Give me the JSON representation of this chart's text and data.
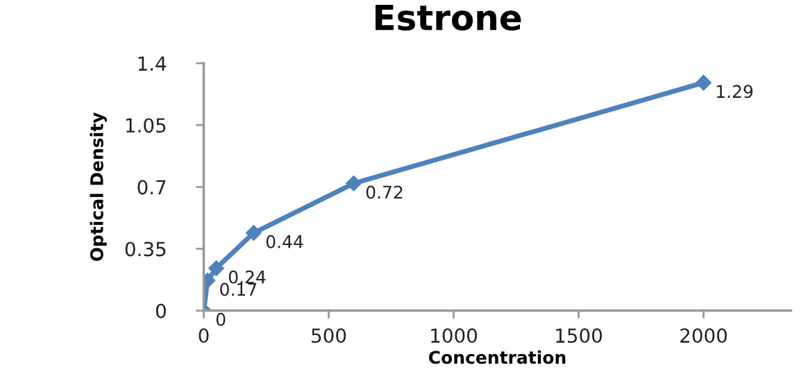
{
  "chart_data": {
    "type": "scatter",
    "title": "Estrone",
    "xlabel": "Concentration",
    "ylabel": "Optical Density",
    "x": [
      0,
      15,
      50,
      200,
      600,
      2000
    ],
    "values": [
      0,
      0.17,
      0.24,
      0.44,
      0.72,
      1.29
    ],
    "color": "#4f81bd",
    "marker": "diamond",
    "line_style": "solid",
    "data_labels": true,
    "xlim": [
      0,
      2350
    ],
    "xticks": [
      0,
      500,
      1000,
      1500,
      2000
    ],
    "ylim": [
      0,
      1.4
    ],
    "yticks": [
      0,
      0.35,
      0.7,
      1.05,
      1.4
    ],
    "grid": false,
    "legend": false
  }
}
